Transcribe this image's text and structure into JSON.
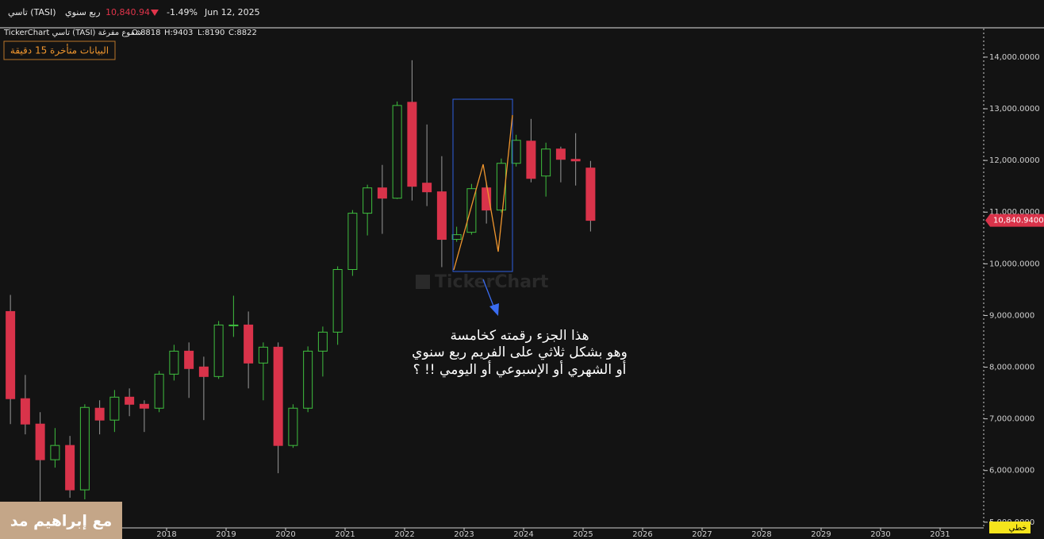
{
  "header": {
    "symbol": "تاسي (TASI)",
    "period": "ربع سنوي",
    "price": "10,840.94",
    "change": "-1.49%",
    "date": "Jun 12, 2025",
    "chart_label": "TickerChart تاسي (TASI) شموع مفرغة",
    "open": "O:8818",
    "high": "H:9403",
    "low": "L:8190",
    "close": "C:8822",
    "delay_notice": "البيانات متأخرة 15 دقيقة",
    "watermark": "TickerChart",
    "chart_style": "خطي",
    "overlay": "مع إبراهيم مد"
  },
  "annotation": [
    "هذا الجزء رقمته كخامسة",
    "وهو بشكل ثلاثي على الفريم ربع سنوي",
    "أو الشهري أو الإسبوعي أو اليومي !! ؟"
  ],
  "chart_data": {
    "type": "candlestick",
    "x": [
      2015.375,
      2015.625,
      2015.875,
      2016.125,
      2016.375,
      2016.625,
      2016.875,
      2017.125,
      2017.375,
      2017.625,
      2017.875,
      2018.125,
      2018.375,
      2018.625,
      2018.875,
      2019.125,
      2019.375,
      2019.625,
      2019.875,
      2020.125,
      2020.375,
      2020.625,
      2020.875,
      2021.125,
      2021.375,
      2021.625,
      2021.875,
      2022.125,
      2022.375,
      2022.625,
      2022.875,
      2023.125,
      2023.375,
      2023.625,
      2023.875,
      2024.125,
      2024.375,
      2024.625,
      2024.875,
      2025.125
    ],
    "open": [
      9077,
      7390,
      6899,
      6209,
      6485,
      5626,
      7206,
      6976,
      7420,
      7282,
      7206,
      7865,
      8310,
      8004,
      7819,
      8800,
      8816,
      8080,
      8387,
      6485,
      7206,
      8310,
      8678,
      9890,
      10979,
      11469,
      11270,
      13126,
      11561,
      11393,
      10473,
      10610,
      11469,
      11040,
      11945,
      12374,
      11699,
      12221,
      12022,
      11853
    ],
    "high": [
      9399,
      7850,
      7129,
      6822,
      6669,
      7282,
      7359,
      7558,
      7589,
      7359,
      7927,
      8433,
      8479,
      8203,
      8893,
      9383,
      9077,
      8479,
      8479,
      7282,
      8402,
      8786,
      9951,
      11040,
      11531,
      11914,
      13141,
      13939,
      12696,
      12083,
      10718,
      11546,
      11577,
      12037,
      12497,
      12804,
      12344,
      12267,
      12528,
      11991
    ],
    "low": [
      6899,
      6700,
      5411,
      6056,
      5473,
      5442,
      6700,
      6746,
      7052,
      6746,
      7129,
      7742,
      7405,
      6976,
      7773,
      8586,
      7589,
      7359,
      5948,
      6439,
      7129,
      7819,
      8433,
      9767,
      10549,
      10580,
      11255,
      11224,
      11117,
      9936,
      10426,
      10564,
      10779,
      10994,
      11883,
      11577,
      11301,
      11577,
      11515,
      10626
    ],
    "close": [
      7390,
      6899,
      6209,
      6485,
      5626,
      7221,
      6976,
      7420,
      7282,
      7206,
      7865,
      8310,
      7973,
      7819,
      8816,
      8816,
      8080,
      8387,
      6485,
      7206,
      8310,
      8678,
      9890,
      10979,
      11469,
      11270,
      13064,
      11500,
      11393,
      10473,
      10564,
      11454,
      11040,
      11945,
      12390,
      11653,
      12221,
      12022,
      11991,
      10840.94
    ],
    "up_color": "#3fbf3f",
    "down_color": "#d9334a",
    "xlim": [
      2015.2,
      2031.733
    ],
    "xticks": [
      2018,
      2019,
      2020,
      2021,
      2022,
      2023,
      2024,
      2025,
      2026,
      2027,
      2028,
      2029,
      2030,
      2031
    ],
    "ylim": [
      4890,
      14552
    ],
    "yticks": [
      {
        "value": 5000,
        "label": "5,000.0000"
      },
      {
        "value": 6000,
        "label": "6,000.0000"
      },
      {
        "value": 7000,
        "label": "7,000.0000"
      },
      {
        "value": 8000,
        "label": "8,000.0000"
      },
      {
        "value": 9000,
        "label": "9,000.0000"
      },
      {
        "value": 10000,
        "label": "10,000.0000"
      },
      {
        "value": 11000,
        "label": "11,000.0000"
      },
      {
        "value": 12000,
        "label": "12,000.0000"
      },
      {
        "value": 13000,
        "label": "13,000.0000"
      },
      {
        "value": 14000,
        "label": "14,000.0000"
      }
    ],
    "last_price": {
      "value": 10840.94,
      "label": "10,840.9400"
    }
  }
}
